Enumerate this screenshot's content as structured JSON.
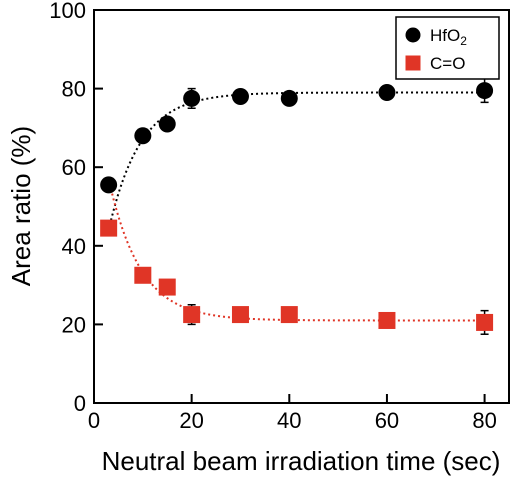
{
  "chart_data": {
    "type": "scatter",
    "title": "",
    "xlabel": "Neutral beam irradiation time (sec)",
    "ylabel": "Area ratio (%)",
    "xlim": [
      0,
      85
    ],
    "ylim": [
      0,
      100
    ],
    "xticks": [
      0,
      20,
      40,
      60,
      80
    ],
    "yticks": [
      0,
      20,
      40,
      60,
      80,
      100
    ],
    "xtick_labels": [
      "0",
      "20",
      "40",
      "60",
      "80"
    ],
    "ytick_labels": [
      "0",
      "20",
      "40",
      "60",
      "80",
      "100"
    ],
    "grid": false,
    "legend_position": "top-right",
    "series": [
      {
        "name": "HfO2",
        "legend_main": "HfO",
        "legend_sub": "2",
        "marker": "circle",
        "color": "#000000",
        "x": [
          3,
          10,
          15,
          20,
          30,
          40,
          60,
          80
        ],
        "y": [
          55.5,
          68,
          71,
          77.5,
          78,
          77.5,
          79,
          79.5
        ],
        "yerr": [
          1,
          1,
          1,
          2.5,
          1,
          1,
          1,
          3
        ],
        "fit": {
          "a": 79,
          "b": 35,
          "tau": 6.5
        }
      },
      {
        "name": "C=O",
        "legend_main": "C=O",
        "legend_sub": "",
        "marker": "square",
        "color": "#e03526",
        "x": [
          3,
          10,
          15,
          20,
          30,
          40,
          60,
          80
        ],
        "y": [
          44.5,
          32.5,
          29.5,
          22.5,
          22.5,
          22.5,
          21,
          20.5
        ],
        "yerr": [
          1,
          1,
          1,
          2.5,
          1,
          1,
          1,
          3
        ],
        "fit": {
          "a": 21,
          "b": -36,
          "tau": 6.5
        }
      }
    ]
  }
}
